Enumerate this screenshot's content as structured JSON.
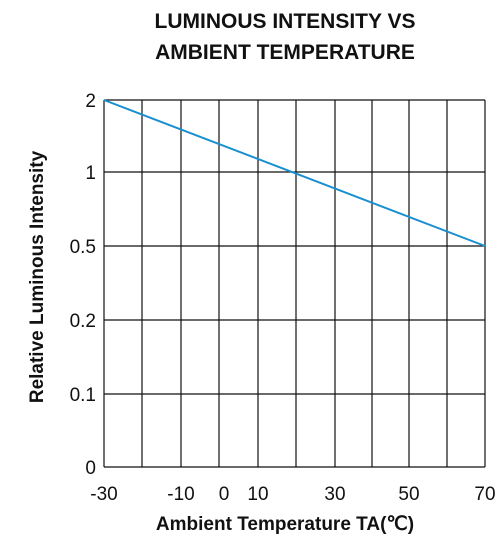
{
  "chart_data": {
    "type": "line",
    "title_lines": [
      "LUMINOUS INTENSITY VS",
      "AMBIENT TEMPERATURE"
    ],
    "xlabel": "Ambient Temperature TA(℃)",
    "ylabel": "Relative Luminous Intensity",
    "x_tick_labels": [
      "-30",
      "-10",
      "0",
      "10",
      "30",
      "50",
      "70"
    ],
    "y_tick_labels": [
      "0",
      "0.1",
      "0.2",
      "0.5",
      "1",
      "2"
    ],
    "grid": true,
    "xlim": [
      -30,
      70
    ],
    "y_scale": "categorical ticks",
    "series": [
      {
        "x": [
          -30,
          70
        ],
        "y": [
          2,
          0.5
        ],
        "color": "#1a8fd0"
      }
    ]
  }
}
